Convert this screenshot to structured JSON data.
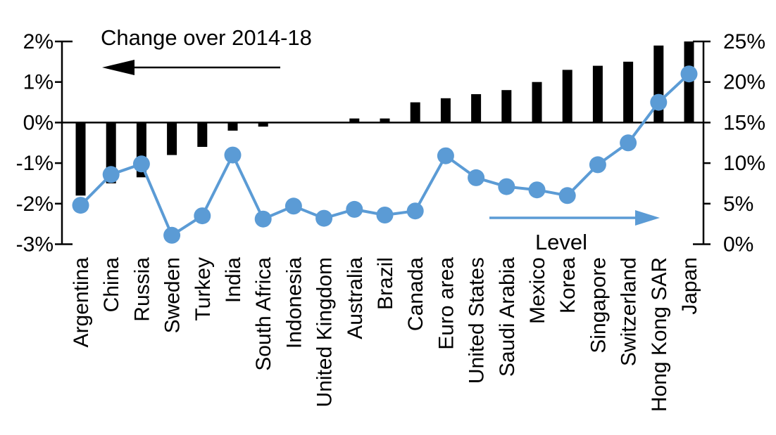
{
  "chart_data": {
    "type": "bar",
    "subtype": "bar-line-combo",
    "title": "",
    "categories": [
      "Argentina",
      "China",
      "Russia",
      "Sweden",
      "Turkey",
      "India",
      "South Africa",
      "Indonesia",
      "United Kingdom",
      "Australia",
      "Brazil",
      "Canada",
      "Euro area",
      "United States",
      "Saudi Arabia",
      "Mexico",
      "Korea",
      "Singapore",
      "Switzerland",
      "Hong Kong SAR",
      "Japan"
    ],
    "series": [
      {
        "name": "Change over 2014-18",
        "type": "bar",
        "axis": "left",
        "color": "#000000",
        "values": [
          -1.8,
          -1.5,
          -1.35,
          -0.8,
          -0.6,
          -0.2,
          -0.1,
          0.0,
          0.0,
          0.1,
          0.1,
          0.5,
          0.6,
          0.7,
          0.8,
          1.0,
          1.3,
          1.4,
          1.5,
          1.9,
          2.0
        ]
      },
      {
        "name": "Level",
        "type": "line",
        "axis": "right",
        "color": "#5B9BD5",
        "values": [
          4.8,
          8.6,
          9.9,
          1.1,
          3.5,
          11.0,
          3.1,
          4.7,
          3.2,
          4.3,
          3.6,
          4.1,
          10.9,
          8.2,
          7.1,
          6.7,
          6.0,
          9.8,
          12.5,
          17.5,
          21.0
        ]
      }
    ],
    "left_axis": {
      "min": -3,
      "max": 2,
      "ticks": [
        "2%",
        "1%",
        "0%",
        "-1%",
        "-2%",
        "-3%"
      ]
    },
    "right_axis": {
      "min": 0,
      "max": 25,
      "ticks": [
        "25%",
        "20%",
        "15%",
        "10%",
        "5%",
        "0%"
      ]
    },
    "annotations": {
      "bar_label": "Change over 2014-18",
      "line_label": "Level"
    },
    "layout_hints": {
      "grid": "off",
      "legend": "annotated-arrows",
      "category_labels": "rotated-90"
    }
  }
}
